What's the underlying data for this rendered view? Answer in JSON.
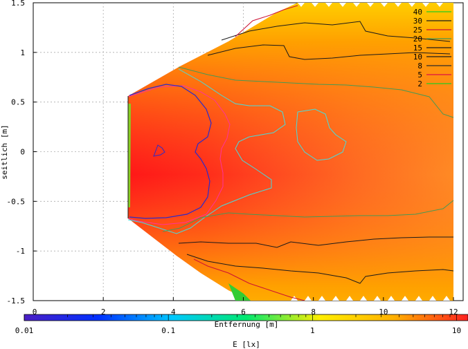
{
  "chart_data": {
    "type": "heatmap",
    "title": "",
    "xlabel": "Entfernung [m]",
    "ylabel": "seitlich [m]",
    "xlim": [
      0,
      12
    ],
    "ylim": [
      -1.5,
      1.5
    ],
    "xticks": [
      "0",
      "2",
      "4",
      "6",
      "8",
      "10",
      "12"
    ],
    "yticks": [
      "1.5",
      "1",
      "0.5",
      "0",
      "-0.5",
      "-1",
      "-1.5"
    ],
    "grid": true,
    "legend_position": "top-right",
    "contour_levels": [
      {
        "label": "40",
        "color": "#22cc22"
      },
      {
        "label": "30",
        "color": "#1a1a1a"
      },
      {
        "label": "25",
        "color": "#cc1133"
      },
      {
        "label": "20",
        "color": "#449955"
      },
      {
        "label": "15",
        "color": "#1a1a1a"
      },
      {
        "label": "10",
        "color": "#1a1a1a"
      },
      {
        "label": "8",
        "color": "#2a2a2a"
      },
      {
        "label": "5",
        "color": "#dd1144"
      },
      {
        "label": "2",
        "color": "#22cc22"
      }
    ],
    "colorbar": {
      "label": "E [lx]",
      "scale": "log",
      "range": [
        0.01,
        12
      ],
      "ticks": [
        "0.01",
        "0.1",
        "1",
        "10"
      ],
      "colors": [
        "#4b1fc4",
        "#0030ff",
        "#00c8ff",
        "#00e870",
        "#ffee00",
        "#ffb000",
        "#ff2020"
      ]
    }
  }
}
